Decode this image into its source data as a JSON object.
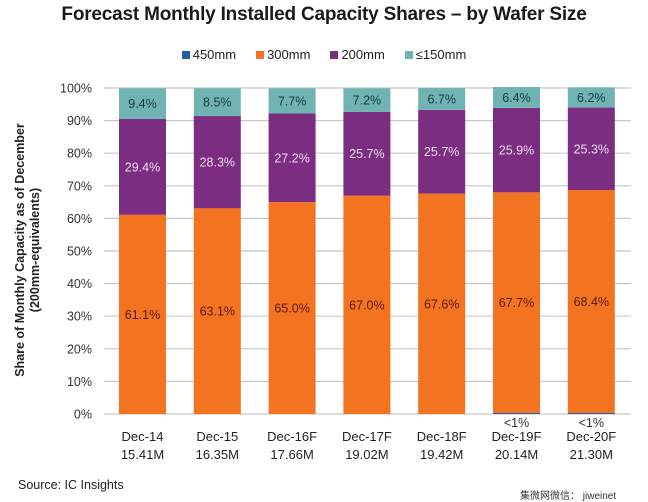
{
  "chart_data": {
    "type": "bar",
    "stacked": true,
    "title": "Forecast Monthly Installed Capacity Shares – by Wafer Size",
    "xlabel": "",
    "ylabel": "Share of Monthly Capacity as of December",
    "ylabel_sub": "(200mm-equivalents)",
    "ylim": [
      0,
      100
    ],
    "yticks": [
      "0%",
      "10%",
      "20%",
      "30%",
      "40%",
      "50%",
      "60%",
      "70%",
      "80%",
      "90%",
      "100%"
    ],
    "grid": true,
    "legend_position": "top",
    "categories": [
      "Dec-14",
      "Dec-15",
      "Dec-16F",
      "Dec-17F",
      "Dec-18F",
      "Dec-19F",
      "Dec-20F"
    ],
    "category_totals": [
      "15.41M",
      "16.35M",
      "17.66M",
      "19.02M",
      "19.42M",
      "20.14M",
      "21.30M"
    ],
    "series": [
      {
        "name": "450mm",
        "color": "#1f5fa8",
        "values": [
          0,
          0,
          0,
          0,
          0,
          0.3,
          0.3
        ],
        "labels": [
          "",
          "",
          "",
          "",
          "",
          "<1%",
          "<1%"
        ]
      },
      {
        "name": "300mm",
        "color": "#f47321",
        "values": [
          61.1,
          63.1,
          65.0,
          67.0,
          67.6,
          67.7,
          68.4
        ],
        "labels": [
          "61.1%",
          "63.1%",
          "65.0%",
          "67.0%",
          "67.6%",
          "67.7%",
          "68.4%"
        ]
      },
      {
        "name": "200mm",
        "color": "#7b2d82",
        "values": [
          29.4,
          28.3,
          27.2,
          25.7,
          25.7,
          25.9,
          25.3
        ],
        "labels": [
          "29.4%",
          "28.3%",
          "27.2%",
          "25.7%",
          "25.7%",
          "25.9%",
          "25.3%"
        ]
      },
      {
        "name": "≤150mm",
        "color": "#6fb3b3",
        "values": [
          9.4,
          8.5,
          7.7,
          7.2,
          6.7,
          6.4,
          6.2
        ],
        "labels": [
          "9.4%",
          "8.5%",
          "7.7%",
          "7.2%",
          "6.7%",
          "6.4%",
          "6.2%"
        ]
      }
    ],
    "label_colors": {
      "300mm": "#5a1a0a",
      "200mm": "#f2dcf2",
      "≤150mm": "#1a3a3a",
      "450mm": "#333333"
    }
  },
  "legend": {
    "items": [
      {
        "label": "450mm",
        "color": "#1f5fa8"
      },
      {
        "label": "300mm",
        "color": "#f47321"
      },
      {
        "label": "200mm",
        "color": "#7b2d82"
      },
      {
        "label": "≤150mm",
        "color": "#6fb3b3"
      }
    ]
  },
  "footer": {
    "source": "Source:  IC Insights",
    "watermark": "集微网微信： jiweinet"
  }
}
